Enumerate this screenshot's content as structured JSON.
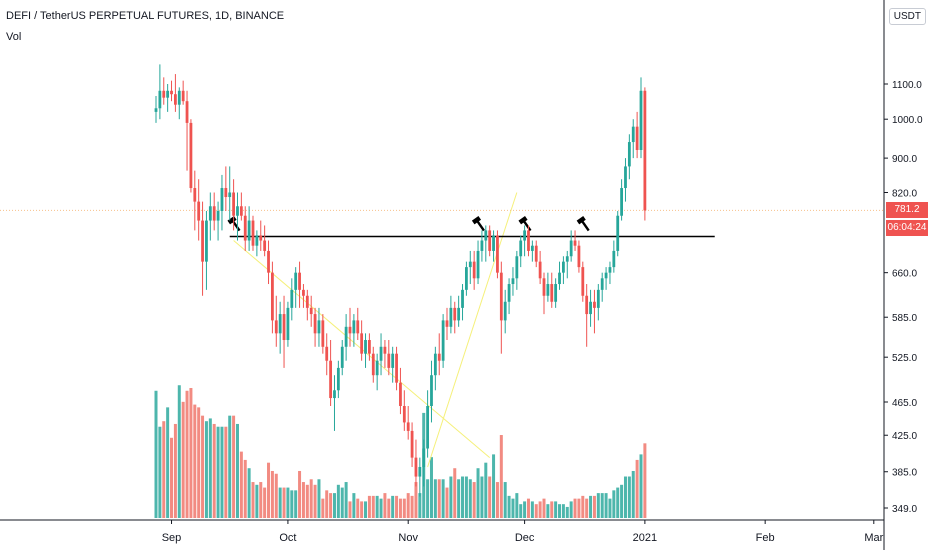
{
  "header": {
    "symbol_line": "DEFI / TetherUS PERPETUAL FUTURES, 1D, BINANCE",
    "volume_label": "Vol",
    "currency_button": "USDT"
  },
  "price_badges": {
    "last_price": "781.2",
    "countdown": "06:04:24",
    "last_price_color": "#ef5350",
    "countdown_color": "#ef5350"
  },
  "colors": {
    "up": "#26a69a",
    "down": "#ef5350",
    "vol_up": "#4db6ac",
    "vol_down": "#f28b82",
    "axis_text": "#131722",
    "trendline": "#f5f07a",
    "neckline": "#000000",
    "price_line": "#f7c08b"
  },
  "chart_data": {
    "type": "candlestick",
    "title": "DEFI / TetherUS PERPETUAL FUTURES, 1D, BINANCE",
    "y_scale": "log",
    "y_ticks": [
      1100,
      1000,
      900,
      820,
      660,
      585,
      525,
      465,
      425,
      385,
      349
    ],
    "y_tick_labels": [
      "1100.0",
      "1000.0",
      "900.0",
      "820.0",
      "660.0",
      "585.0",
      "525.0",
      "465.0",
      "425.0",
      "385.0",
      "349.0"
    ],
    "x_ticks": [
      {
        "label": "Sep",
        "date": "2020-09-01"
      },
      {
        "label": "Oct",
        "date": "2020-10-01"
      },
      {
        "label": "Nov",
        "date": "2020-11-01"
      },
      {
        "label": "Dec",
        "date": "2020-12-01"
      },
      {
        "label": "2021",
        "date": "2021-01-01"
      },
      {
        "label": "Feb",
        "date": "2021-02-01"
      },
      {
        "label": "Mar",
        "date": "2021-03-01"
      }
    ],
    "first_date": "2020-08-28",
    "ohlc": [
      [
        1020,
        1065,
        990,
        1030
      ],
      [
        1030,
        1160,
        1000,
        1080
      ],
      [
        1080,
        1120,
        1040,
        1060
      ],
      [
        1060,
        1100,
        1020,
        1080
      ],
      [
        1080,
        1110,
        1050,
        1070
      ],
      [
        1070,
        1130,
        1020,
        1040
      ],
      [
        1040,
        1090,
        1000,
        1080
      ],
      [
        1080,
        1110,
        1040,
        1050
      ],
      [
        1050,
        1080,
        870,
        990
      ],
      [
        990,
        1000,
        820,
        830
      ],
      [
        830,
        870,
        740,
        800
      ],
      [
        800,
        850,
        720,
        760
      ],
      [
        760,
        800,
        620,
        680
      ],
      [
        680,
        780,
        630,
        760
      ],
      [
        760,
        820,
        720,
        790
      ],
      [
        790,
        820,
        740,
        760
      ],
      [
        760,
        800,
        720,
        780
      ],
      [
        780,
        860,
        740,
        830
      ],
      [
        830,
        880,
        780,
        810
      ],
      [
        810,
        880,
        760,
        820
      ],
      [
        820,
        850,
        740,
        770
      ],
      [
        770,
        820,
        720,
        790
      ],
      [
        790,
        820,
        760,
        770
      ],
      [
        770,
        790,
        700,
        720
      ],
      [
        720,
        790,
        700,
        760
      ],
      [
        760,
        770,
        700,
        710
      ],
      [
        710,
        740,
        690,
        730
      ],
      [
        730,
        760,
        700,
        720
      ],
      [
        720,
        750,
        690,
        700
      ],
      [
        700,
        720,
        640,
        660
      ],
      [
        660,
        680,
        560,
        580
      ],
      [
        580,
        620,
        540,
        560
      ],
      [
        560,
        610,
        530,
        590
      ],
      [
        590,
        620,
        510,
        550
      ],
      [
        550,
        610,
        540,
        600
      ],
      [
        600,
        650,
        580,
        630
      ],
      [
        630,
        670,
        600,
        660
      ],
      [
        660,
        680,
        600,
        630
      ],
      [
        630,
        640,
        600,
        620
      ],
      [
        620,
        630,
        580,
        600
      ],
      [
        600,
        620,
        570,
        590
      ],
      [
        590,
        600,
        540,
        560
      ],
      [
        560,
        600,
        540,
        580
      ],
      [
        580,
        590,
        530,
        540
      ],
      [
        540,
        560,
        500,
        520
      ],
      [
        520,
        550,
        460,
        470
      ],
      [
        470,
        500,
        430,
        480
      ],
      [
        480,
        520,
        470,
        510
      ],
      [
        510,
        550,
        500,
        540
      ],
      [
        540,
        590,
        520,
        570
      ],
      [
        570,
        600,
        540,
        560
      ],
      [
        560,
        590,
        540,
        580
      ],
      [
        580,
        600,
        550,
        560
      ],
      [
        560,
        580,
        520,
        530
      ],
      [
        530,
        560,
        510,
        550
      ],
      [
        550,
        560,
        520,
        530
      ],
      [
        530,
        540,
        490,
        500
      ],
      [
        500,
        530,
        480,
        520
      ],
      [
        520,
        560,
        500,
        540
      ],
      [
        540,
        550,
        510,
        530
      ],
      [
        530,
        550,
        500,
        510
      ],
      [
        510,
        540,
        490,
        530
      ],
      [
        530,
        540,
        480,
        490
      ],
      [
        490,
        510,
        450,
        460
      ],
      [
        460,
        480,
        430,
        440
      ],
      [
        440,
        460,
        420,
        430
      ],
      [
        430,
        440,
        390,
        400
      ],
      [
        400,
        420,
        370,
        380
      ],
      [
        380,
        400,
        360,
        390
      ],
      [
        390,
        420,
        370,
        410
      ],
      [
        410,
        480,
        400,
        460
      ],
      [
        460,
        520,
        440,
        500
      ],
      [
        500,
        540,
        480,
        530
      ],
      [
        530,
        560,
        500,
        520
      ],
      [
        520,
        590,
        510,
        580
      ],
      [
        580,
        600,
        550,
        570
      ],
      [
        570,
        620,
        560,
        600
      ],
      [
        600,
        610,
        560,
        580
      ],
      [
        580,
        620,
        570,
        600
      ],
      [
        600,
        640,
        580,
        630
      ],
      [
        630,
        680,
        620,
        670
      ],
      [
        670,
        700,
        640,
        680
      ],
      [
        680,
        700,
        630,
        650
      ],
      [
        650,
        720,
        640,
        700
      ],
      [
        700,
        740,
        680,
        720
      ],
      [
        720,
        750,
        680,
        740
      ],
      [
        740,
        750,
        690,
        700
      ],
      [
        700,
        740,
        680,
        730
      ],
      [
        730,
        740,
        650,
        660
      ],
      [
        660,
        680,
        530,
        580
      ],
      [
        580,
        630,
        560,
        610
      ],
      [
        610,
        650,
        590,
        640
      ],
      [
        640,
        670,
        620,
        650
      ],
      [
        650,
        700,
        630,
        690
      ],
      [
        690,
        730,
        670,
        720
      ],
      [
        720,
        750,
        690,
        740
      ],
      [
        740,
        750,
        690,
        700
      ],
      [
        700,
        720,
        680,
        710
      ],
      [
        710,
        720,
        670,
        680
      ],
      [
        680,
        700,
        640,
        650
      ],
      [
        650,
        660,
        590,
        620
      ],
      [
        620,
        660,
        610,
        640
      ],
      [
        640,
        660,
        600,
        610
      ],
      [
        610,
        650,
        600,
        640
      ],
      [
        640,
        680,
        630,
        660
      ],
      [
        660,
        690,
        640,
        680
      ],
      [
        680,
        700,
        650,
        690
      ],
      [
        690,
        740,
        680,
        720
      ],
      [
        720,
        740,
        700,
        710
      ],
      [
        710,
        720,
        660,
        670
      ],
      [
        670,
        680,
        610,
        620
      ],
      [
        620,
        640,
        540,
        590
      ],
      [
        590,
        630,
        570,
        610
      ],
      [
        610,
        630,
        560,
        600
      ],
      [
        600,
        640,
        580,
        630
      ],
      [
        630,
        660,
        610,
        650
      ],
      [
        650,
        670,
        630,
        660
      ],
      [
        660,
        680,
        640,
        670
      ],
      [
        670,
        720,
        660,
        700
      ],
      [
        700,
        780,
        690,
        770
      ],
      [
        770,
        850,
        760,
        830
      ],
      [
        830,
        900,
        800,
        880
      ],
      [
        880,
        960,
        850,
        940
      ],
      [
        940,
        1000,
        900,
        980
      ],
      [
        980,
        1020,
        900,
        920
      ],
      [
        920,
        1120,
        900,
        1080
      ],
      [
        1080,
        1090,
        760,
        781.2
      ]
    ],
    "volume": [
      0.46,
      0.33,
      0.35,
      0.4,
      0.29,
      0.34,
      0.48,
      0.42,
      0.46,
      0.47,
      0.41,
      0.4,
      0.37,
      0.35,
      0.36,
      0.34,
      0.33,
      0.33,
      0.33,
      0.37,
      0.37,
      0.34,
      0.24,
      0.21,
      0.18,
      0.13,
      0.12,
      0.13,
      0.11,
      0.2,
      0.17,
      0.16,
      0.11,
      0.11,
      0.11,
      0.1,
      0.1,
      0.17,
      0.13,
      0.12,
      0.14,
      0.12,
      0.14,
      0.07,
      0.1,
      0.09,
      0.09,
      0.12,
      0.11,
      0.13,
      0.06,
      0.09,
      0.07,
      0.06,
      0.06,
      0.08,
      0.08,
      0.08,
      0.07,
      0.09,
      0.07,
      0.08,
      0.08,
      0.07,
      0.07,
      0.09,
      0.08,
      0.13,
      0.09,
      0.38,
      0.14,
      0.22,
      0.14,
      0.14,
      0.14,
      0.11,
      0.15,
      0.18,
      0.14,
      0.15,
      0.15,
      0.14,
      0.13,
      0.18,
      0.15,
      0.2,
      0.15,
      0.23,
      0.13,
      0.3,
      0.13,
      0.08,
      0.07,
      0.09,
      0.05,
      0.06,
      0.07,
      0.06,
      0.05,
      0.06,
      0.07,
      0.05,
      0.06,
      0.06,
      0.05,
      0.05,
      0.04,
      0.06,
      0.07,
      0.07,
      0.08,
      0.07,
      0.08,
      0.08,
      0.09,
      0.09,
      0.09,
      0.07,
      0.1,
      0.11,
      0.12,
      0.15,
      0.15,
      0.17,
      0.21,
      0.23,
      0.27
    ]
  }
}
